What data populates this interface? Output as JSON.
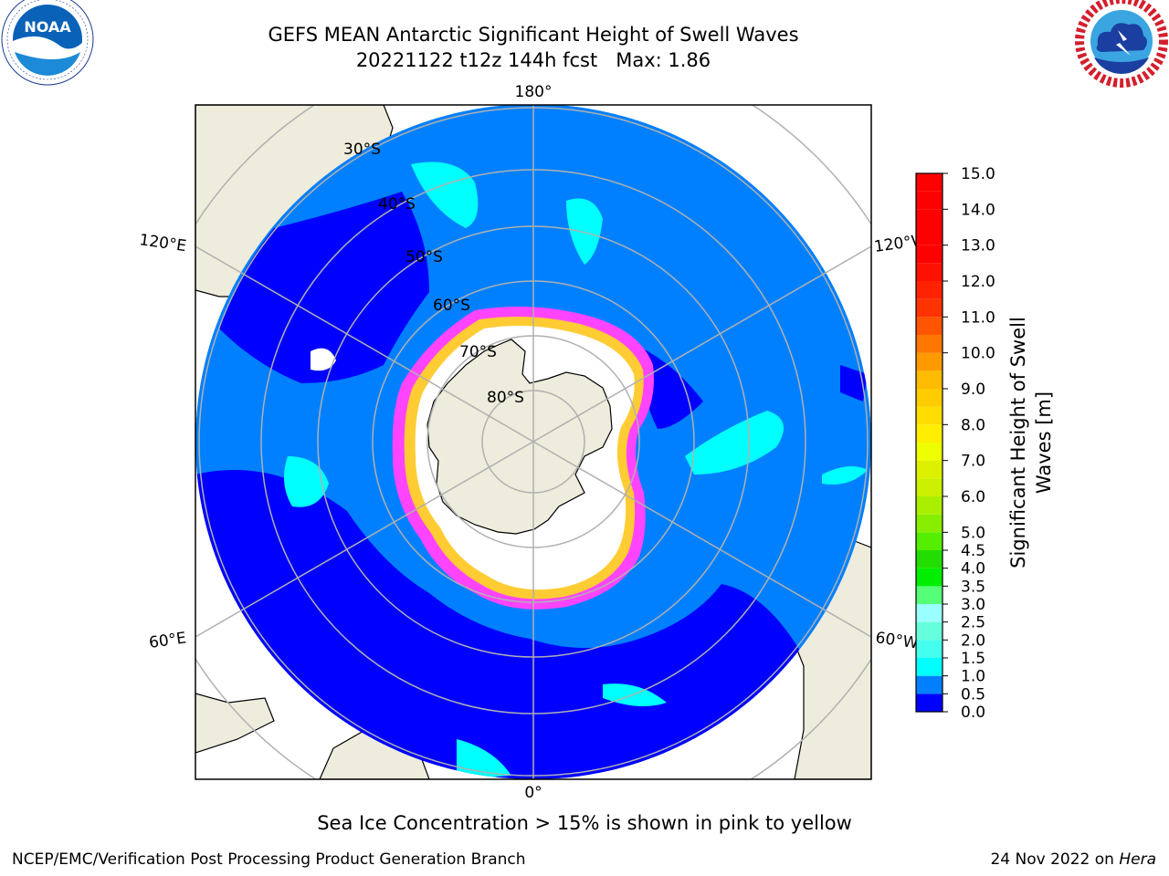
{
  "header": {
    "title_line1": "GEFS MEAN Antarctic Significant Height of Swell Waves",
    "title_line2": "20221122 t12z 144h fcst   Max: 1.86"
  },
  "logos": {
    "noaa_text": "NOAA",
    "noaa_ring_text": "NATIONAL OCEANIC AND ATMOSPHERIC ADMINISTRATION · U.S. DEPARTMENT OF COMMERCE",
    "nws_ring_text": "NATIONAL WEATHER SERVICE"
  },
  "map": {
    "projection": "south-polar-stereographic",
    "longitude_labels": {
      "top": "180°",
      "bottom": "0°",
      "upper_left": "120°E",
      "upper_right": "120°W",
      "lower_left": "60°E",
      "lower_right": "60°W"
    },
    "latitude_labels": [
      "30°S",
      "40°S",
      "50°S",
      "60°S",
      "70°S",
      "80°S"
    ],
    "colors": {
      "ocean_low": "#0000ff",
      "ocean_mid": "#0080ff",
      "swell_1_5": "#00ffff",
      "swell_2_0": "#55ffff",
      "land": "#eeecdc",
      "sea_ice_edge": "#ff44ff",
      "sea_ice_inner": "#ffcc33",
      "gridline": "#b0b0b0"
    }
  },
  "colorbar": {
    "label_line1": "Significant Height of Swell",
    "label_line2": "Waves [m]",
    "ticks": [
      "0.0",
      "0.5",
      "1.0",
      "1.5",
      "2.0",
      "2.5",
      "3.0",
      "3.5",
      "4.0",
      "4.5",
      "5.0",
      "5.5",
      "6.0",
      "6.5",
      "7.0",
      "7.5",
      "8.0",
      "8.5",
      "9.0",
      "9.5",
      "10.0",
      "10.5",
      "11.0",
      "11.5",
      "12.0",
      "12.5",
      "13.0",
      "13.5",
      "14.0",
      "14.5",
      "15.0"
    ],
    "colors": [
      "#0000ff",
      "#0080ff",
      "#00ffff",
      "#44ffee",
      "#66ffdd",
      "#99ffff",
      "#55ff77",
      "#00ee00",
      "#22dd00",
      "#55ee00",
      "#88ee00",
      "#aaee00",
      "#ccf000",
      "#ddf000",
      "#eeff00",
      "#ffee00",
      "#ffdd00",
      "#ffcc00",
      "#ffbb00",
      "#ff9900",
      "#ff7700",
      "#ff5500",
      "#ff3300",
      "#ff2200",
      "#ff1100",
      "#ff0000",
      "#ff0000",
      "#ff0000",
      "#ff0000",
      "#ff0000"
    ],
    "range": [
      0,
      15
    ]
  },
  "footer": {
    "note": "Sea Ice Concentration > 15% is shown in pink to yellow",
    "left": "NCEP/EMC/Verification Post Processing Product Generation Branch",
    "right_prefix": "24 Nov 2022 on ",
    "right_italic": "Hera"
  }
}
